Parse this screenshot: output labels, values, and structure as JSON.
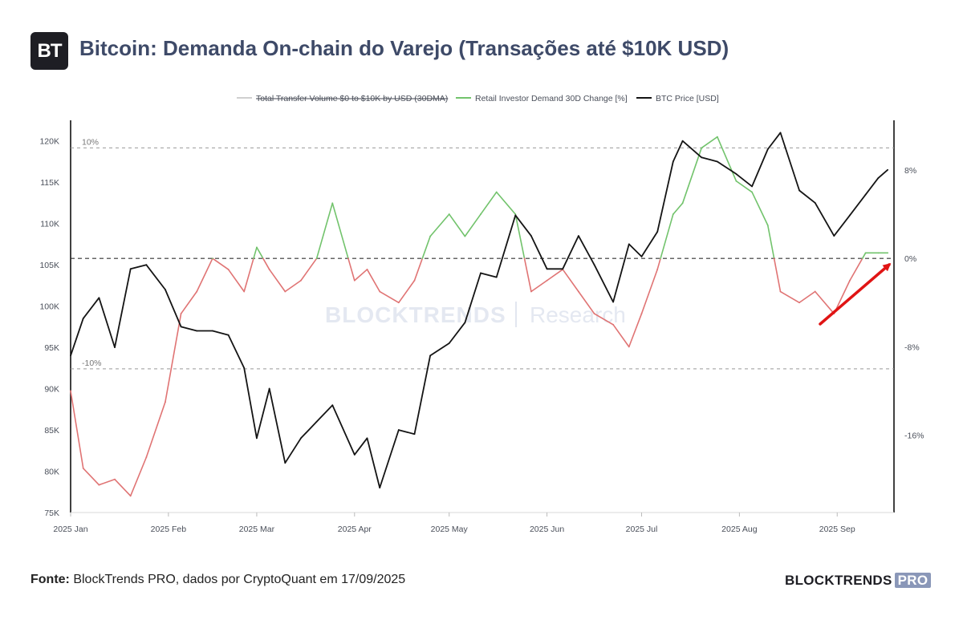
{
  "header": {
    "logo_text": "BT",
    "title": "Bitcoin: Demanda On-chain do Varejo (Transações até $10K USD)"
  },
  "footer": {
    "source_label": "Fonte:",
    "source_text": "BlockTrends PRO, dados por CryptoQuant em 17/09/2025",
    "brand": "BLOCKTRENDS",
    "brand_badge": "PRO"
  },
  "watermark": {
    "left": "BLOCKTRENDS",
    "right": "Research"
  },
  "colors": {
    "positive": "#72c36c",
    "negative": "#e07474",
    "price": "#141414",
    "volume_legend": "#cfcfcf",
    "arrow": "#e01414"
  },
  "chart_data": {
    "type": "line",
    "legend": [
      {
        "label": "Total Transfer Volume $0 to $10K by USD (30DMA)",
        "color": "#cfcfcf",
        "strikethrough": true
      },
      {
        "label": "Retail Investor Demand 30D Change [%]",
        "color": "#72c36c"
      },
      {
        "label": "BTC Price [USD]",
        "color": "#141414"
      }
    ],
    "x_ticks": [
      "2025 Jan",
      "2025 Feb",
      "2025 Mar",
      "2025 Apr",
      "2025 May",
      "2025 Jun",
      "2025 Jul",
      "2025 Aug",
      "2025 Sep"
    ],
    "left_axis": {
      "ticks": [
        "75K",
        "80K",
        "85K",
        "90K",
        "95K",
        "100K",
        "105K",
        "110K",
        "115K",
        "120K"
      ],
      "values": [
        75000,
        80000,
        85000,
        90000,
        95000,
        100000,
        105000,
        110000,
        115000,
        120000
      ],
      "ylim": [
        75000,
        122500
      ]
    },
    "right_axis": {
      "ticks": [
        "8%",
        "0%",
        "-8%",
        "-16%"
      ],
      "values": [
        8,
        0,
        -8,
        -16
      ],
      "ylim": [
        -23,
        12.5
      ]
    },
    "reference_lines": [
      {
        "label": "10%",
        "value": 10
      },
      {
        "label": "",
        "value": 0
      },
      {
        "label": "-10%",
        "value": -10
      }
    ],
    "x": [
      "2025-01-01",
      "2025-01-05",
      "2025-01-10",
      "2025-01-15",
      "2025-01-20",
      "2025-01-25",
      "2025-01-31",
      "2025-02-05",
      "2025-02-10",
      "2025-02-15",
      "2025-02-20",
      "2025-02-25",
      "2025-03-01",
      "2025-03-05",
      "2025-03-10",
      "2025-03-15",
      "2025-03-20",
      "2025-03-25",
      "2025-04-01",
      "2025-04-05",
      "2025-04-09",
      "2025-04-15",
      "2025-04-20",
      "2025-04-25",
      "2025-05-01",
      "2025-05-06",
      "2025-05-11",
      "2025-05-16",
      "2025-05-22",
      "2025-05-27",
      "2025-06-01",
      "2025-06-06",
      "2025-06-11",
      "2025-06-16",
      "2025-06-22",
      "2025-06-27",
      "2025-07-01",
      "2025-07-06",
      "2025-07-11",
      "2025-07-14",
      "2025-07-20",
      "2025-07-25",
      "2025-07-31",
      "2025-08-05",
      "2025-08-10",
      "2025-08-14",
      "2025-08-20",
      "2025-08-25",
      "2025-08-31",
      "2025-09-05",
      "2025-09-10",
      "2025-09-14",
      "2025-09-17"
    ],
    "series": [
      {
        "name": "BTC Price [USD]",
        "axis": "left",
        "values": [
          94000,
          98500,
          101000,
          95000,
          104500,
          105000,
          102000,
          97500,
          97000,
          97000,
          96500,
          92500,
          84000,
          90000,
          81000,
          84000,
          86000,
          88000,
          82000,
          84000,
          78000,
          85000,
          84500,
          94000,
          95500,
          98000,
          104000,
          103500,
          111000,
          108500,
          104500,
          104500,
          108500,
          105000,
          100500,
          107500,
          106000,
          109000,
          117500,
          120000,
          118000,
          117500,
          116000,
          114500,
          119000,
          121000,
          114000,
          112500,
          108500,
          111000,
          113500,
          115500,
          116500
        ]
      },
      {
        "name": "Retail Investor Demand 30D Change [%]",
        "axis": "right",
        "values": [
          -12,
          -19,
          -20.5,
          -20,
          -21.5,
          -18,
          -13,
          -5,
          -3,
          0,
          -1,
          -3,
          1,
          -1,
          -3,
          -2,
          0,
          5,
          -2,
          -1,
          -3,
          -4,
          -2,
          2,
          4,
          2,
          4,
          6,
          4,
          -3,
          -2,
          -1,
          -3,
          -5,
          -6,
          -8,
          -5,
          -1,
          4,
          5,
          10,
          11,
          7,
          6,
          3,
          -3,
          -4,
          -3,
          -5,
          -2,
          0.5,
          0.5,
          0.5
        ]
      }
    ],
    "annotation": {
      "type": "arrow",
      "color": "#e01414",
      "points_to_value": "0%"
    }
  }
}
